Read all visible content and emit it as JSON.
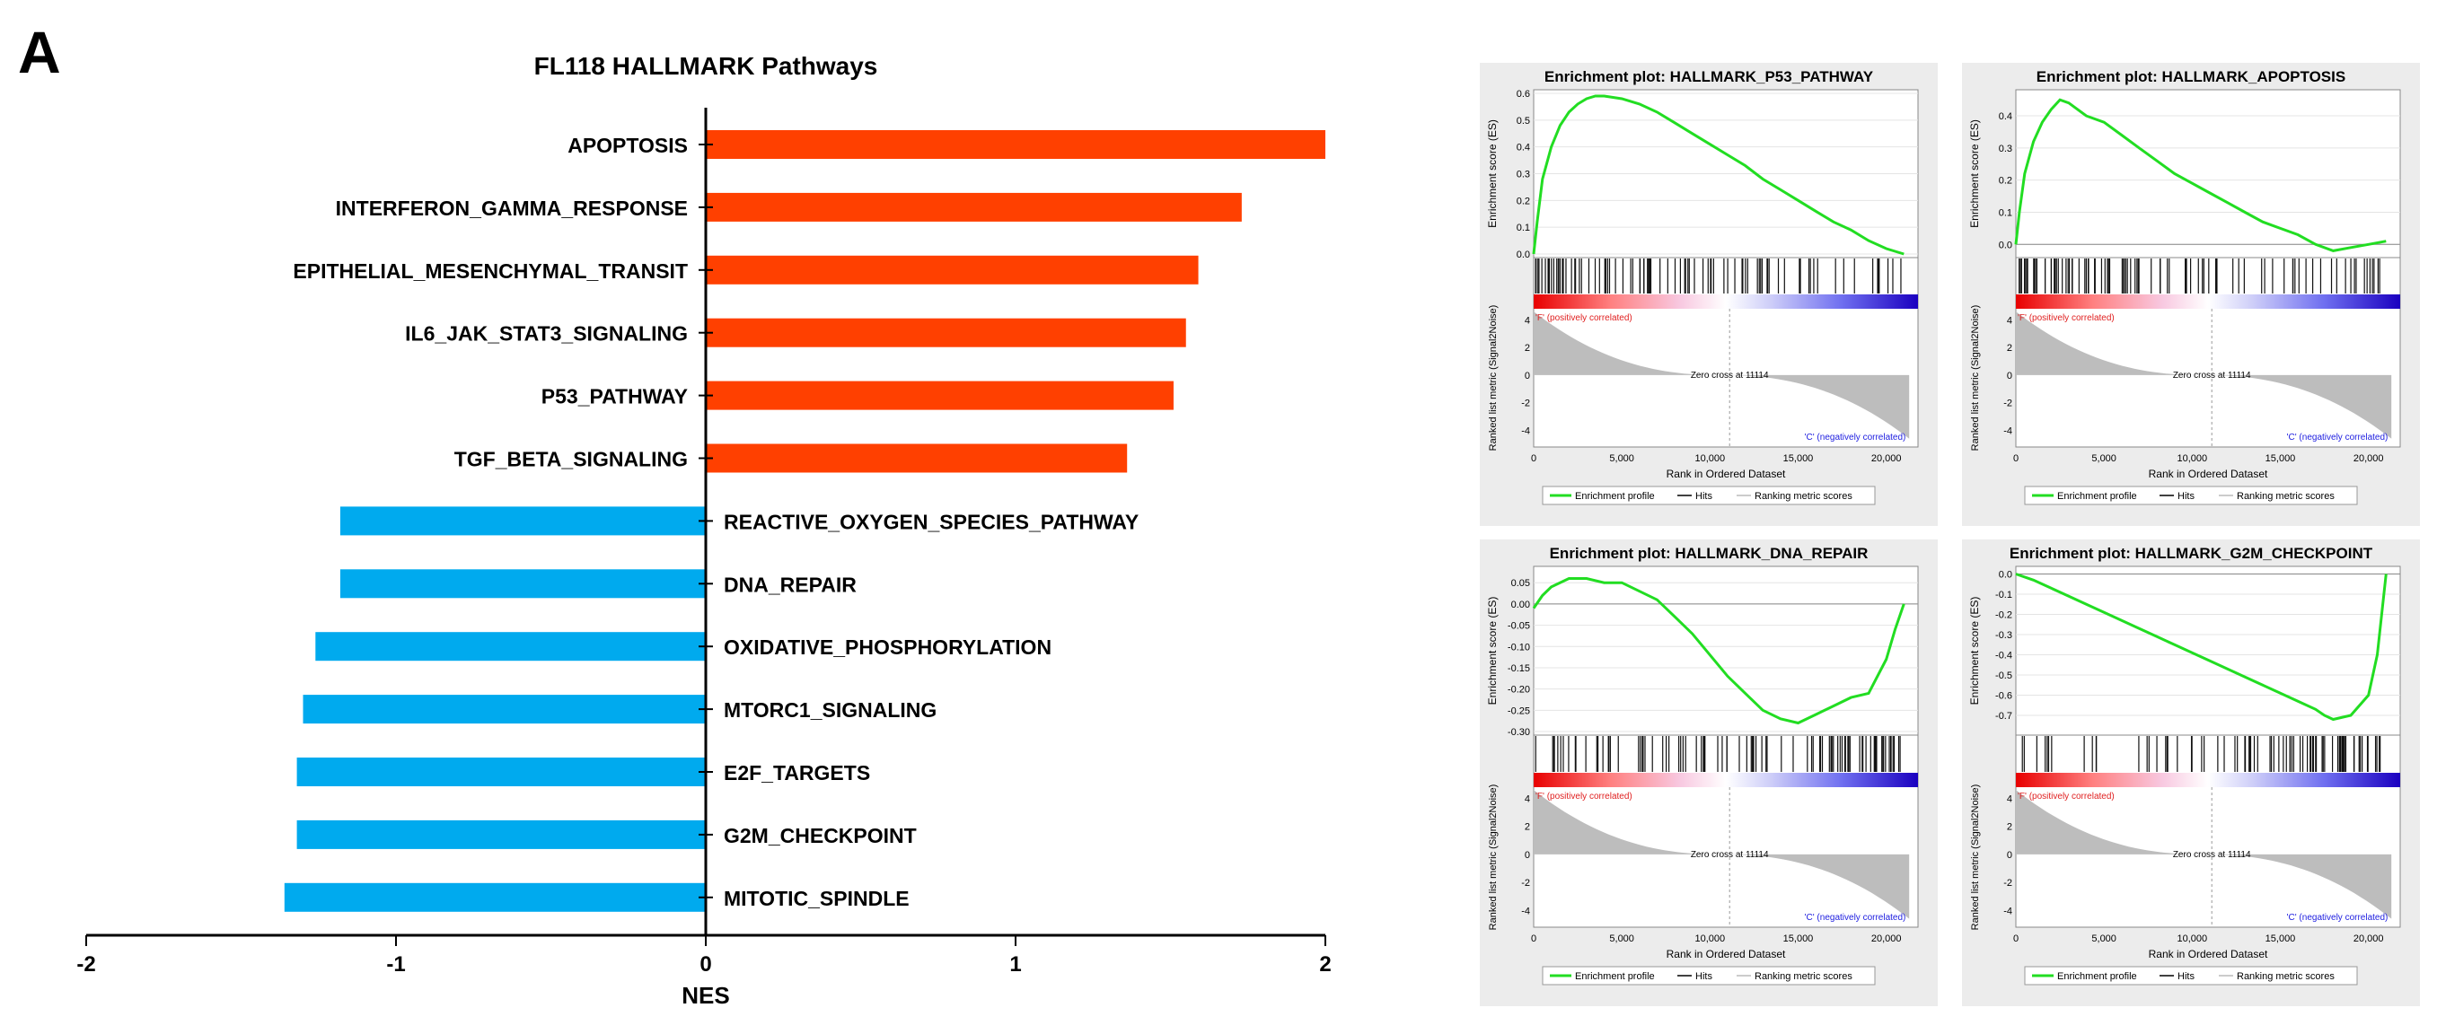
{
  "panel_label": "A",
  "chart_data": [
    {
      "type": "bar",
      "orientation": "horizontal",
      "title": "FL118 HALLMARK Pathways",
      "xlabel": "NES",
      "ylabel": "",
      "xlim": [
        -2,
        2
      ],
      "xticks": [
        "-2",
        "-1",
        "0",
        "1",
        "2"
      ],
      "positive_color": "#ff4000",
      "negative_color": "#00aaee",
      "categories": [
        "APOPTOSIS",
        "INTERFERON_GAMMA_RESPONSE",
        "EPITHELIAL_MESENCHYMAL_TRANSIT",
        "IL6_JAK_STAT3_SIGNALING",
        "P53_PATHWAY",
        "TGF_BETA_SIGNALING",
        "REACTIVE_OXYGEN_SPECIES_PATHWAY",
        "DNA_REPAIR",
        "OXIDATIVE_PHOSPHORYLATION",
        "MTORC1_SIGNALING",
        "E2F_TARGETS",
        "G2M_CHECKPOINT",
        "MITOTIC_SPINDLE"
      ],
      "values": [
        2.0,
        1.73,
        1.59,
        1.55,
        1.51,
        1.36,
        -1.18,
        -1.18,
        -1.26,
        -1.3,
        -1.32,
        -1.32,
        -1.36
      ]
    },
    {
      "type": "line",
      "title": "Enrichment plot: HALLMARK_P53_PATHWAY",
      "ylabel": "Enrichment score (ES)",
      "xlabel": "Rank in Ordered Dataset",
      "metric_ylabel": "Ranked list metric (Signal2Noise)",
      "x_ticks": [
        "0",
        "5,000",
        "10,000",
        "15,000",
        "20,000"
      ],
      "y_ticks": [
        "0.6",
        "0.5",
        "0.4",
        "0.3",
        "0.2",
        "0.1",
        "0.0"
      ],
      "ylim": [
        0.0,
        0.6
      ],
      "metric_ticks": [
        "4",
        "2",
        "0",
        "-2",
        "-4"
      ],
      "pos_label": "'F' (positively correlated)",
      "neg_label": "'C' (negatively correlated)",
      "zero_cross": "Zero cross at 11114",
      "legend": [
        "Enrichment profile",
        "Hits",
        "Ranking metric scores"
      ],
      "es_curve": {
        "x": [
          0,
          200,
          500,
          1000,
          1500,
          2000,
          2500,
          3000,
          3500,
          4000,
          5000,
          6000,
          7000,
          8000,
          9000,
          10000,
          11000,
          12000,
          13000,
          14000,
          15000,
          16000,
          17000,
          18000,
          19000,
          20000,
          21000
        ],
        "y": [
          0.0,
          0.12,
          0.28,
          0.4,
          0.48,
          0.53,
          0.56,
          0.58,
          0.59,
          0.59,
          0.58,
          0.56,
          0.53,
          0.49,
          0.45,
          0.41,
          0.37,
          0.33,
          0.28,
          0.24,
          0.2,
          0.16,
          0.12,
          0.09,
          0.05,
          0.02,
          0.0
        ]
      },
      "hit_density": [
        1.0,
        0.9,
        0.8,
        0.7,
        0.55,
        0.45,
        0.4,
        0.35,
        0.3,
        0.3
      ]
    },
    {
      "type": "line",
      "title": "Enrichment plot: HALLMARK_APOPTOSIS",
      "ylabel": "Enrichment score (ES)",
      "xlabel": "Rank in Ordered Dataset",
      "metric_ylabel": "Ranked list metric (Signal2Noise)",
      "x_ticks": [
        "0",
        "5,000",
        "10,000",
        "15,000",
        "20,000"
      ],
      "y_ticks": [
        "0.4",
        "0.3",
        "0.2",
        "0.1",
        "0.0"
      ],
      "ylim": [
        -0.03,
        0.47
      ],
      "metric_ticks": [
        "4",
        "2",
        "0",
        "-2",
        "-4"
      ],
      "pos_label": "'F' (positively correlated)",
      "neg_label": "'C' (negatively correlated)",
      "zero_cross": "Zero cross at 11114",
      "legend": [
        "Enrichment profile",
        "Hits",
        "Ranking metric scores"
      ],
      "es_curve": {
        "x": [
          0,
          200,
          500,
          1000,
          1500,
          2000,
          2500,
          3000,
          4000,
          5000,
          6000,
          7000,
          8000,
          9000,
          10000,
          11000,
          12000,
          13000,
          14000,
          15000,
          16000,
          17000,
          18000,
          19000,
          20000,
          21000
        ],
        "y": [
          0.0,
          0.1,
          0.22,
          0.32,
          0.38,
          0.42,
          0.45,
          0.44,
          0.4,
          0.38,
          0.34,
          0.3,
          0.26,
          0.22,
          0.19,
          0.16,
          0.13,
          0.1,
          0.07,
          0.05,
          0.03,
          0.0,
          -0.02,
          -0.01,
          0.0,
          0.01
        ]
      },
      "hit_density": [
        1.0,
        0.9,
        0.75,
        0.6,
        0.5,
        0.45,
        0.45,
        0.4,
        0.4,
        0.45
      ]
    },
    {
      "type": "line",
      "title": "Enrichment plot: HALLMARK_DNA_REPAIR",
      "ylabel": "Enrichment score (ES)",
      "xlabel": "Rank in Ordered Dataset",
      "metric_ylabel": "Ranked list metric (Signal2Noise)",
      "x_ticks": [
        "0",
        "5,000",
        "10,000",
        "15,000",
        "20,000"
      ],
      "y_ticks": [
        "0.05",
        "0.00",
        "-0.05",
        "-0.10",
        "-0.15",
        "-0.20",
        "-0.25",
        "-0.30"
      ],
      "ylim": [
        -0.3,
        0.08
      ],
      "metric_ticks": [
        "4",
        "2",
        "0",
        "-2",
        "-4"
      ],
      "pos_label": "'F' (positively correlated)",
      "neg_label": "'C' (negatively correlated)",
      "zero_cross": "Zero cross at 11114",
      "legend": [
        "Enrichment profile",
        "Hits",
        "Ranking metric scores"
      ],
      "es_curve": {
        "x": [
          0,
          500,
          1000,
          2000,
          3000,
          4000,
          5000,
          6000,
          7000,
          8000,
          9000,
          10000,
          11000,
          12000,
          13000,
          14000,
          15000,
          16000,
          17000,
          18000,
          19000,
          20000,
          20500,
          21000
        ],
        "y": [
          -0.01,
          0.02,
          0.04,
          0.06,
          0.06,
          0.05,
          0.05,
          0.03,
          0.01,
          -0.03,
          -0.07,
          -0.12,
          -0.17,
          -0.21,
          -0.25,
          -0.27,
          -0.28,
          -0.26,
          -0.24,
          -0.22,
          -0.21,
          -0.13,
          -0.06,
          0.0
        ]
      },
      "hit_density": [
        0.7,
        0.6,
        0.5,
        0.5,
        0.5,
        0.5,
        0.5,
        0.6,
        0.7,
        0.85
      ]
    },
    {
      "type": "line",
      "title": "Enrichment plot: HALLMARK_G2M_CHECKPOINT",
      "ylabel": "Enrichment score (ES)",
      "xlabel": "Rank in Ordered Dataset",
      "metric_ylabel": "Ranked list metric (Signal2Noise)",
      "x_ticks": [
        "0",
        "5,000",
        "10,000",
        "15,000",
        "20,000"
      ],
      "y_ticks": [
        "0.0",
        "-0.1",
        "-0.2",
        "-0.3",
        "-0.4",
        "-0.5",
        "-0.6",
        "-0.7"
      ],
      "ylim": [
        -0.78,
        0.02
      ],
      "metric_ticks": [
        "4",
        "2",
        "0",
        "-2",
        "-4"
      ],
      "pos_label": "'F' (positively correlated)",
      "neg_label": "'C' (negatively correlated)",
      "zero_cross": "Zero cross at 11114",
      "legend": [
        "Enrichment profile",
        "Hits",
        "Ranking metric scores"
      ],
      "es_curve": {
        "x": [
          0,
          1000,
          2000,
          3000,
          4000,
          5000,
          6000,
          7000,
          8000,
          9000,
          10000,
          11000,
          12000,
          13000,
          14000,
          15000,
          16000,
          17000,
          17500,
          18000,
          19000,
          20000,
          20500,
          21000
        ],
        "y": [
          0.0,
          -0.03,
          -0.07,
          -0.11,
          -0.15,
          -0.19,
          -0.23,
          -0.27,
          -0.31,
          -0.35,
          -0.39,
          -0.43,
          -0.47,
          -0.51,
          -0.55,
          -0.59,
          -0.63,
          -0.67,
          -0.7,
          -0.72,
          -0.7,
          -0.6,
          -0.4,
          0.0
        ]
      },
      "hit_density": [
        0.25,
        0.2,
        0.2,
        0.2,
        0.3,
        0.4,
        0.55,
        0.75,
        0.95,
        1.0
      ]
    }
  ]
}
